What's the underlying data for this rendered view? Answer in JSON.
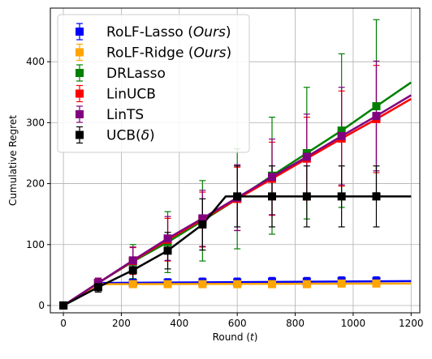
{
  "chart_data": {
    "type": "line",
    "title": "",
    "xlabel": "Round (t)",
    "ylabel": "Cumulative Regret",
    "xlim": [
      -45,
      1230
    ],
    "ylim": [
      -12,
      488
    ],
    "xticks": [
      0,
      200,
      400,
      600,
      800,
      1000,
      1200
    ],
    "yticks": [
      0,
      100,
      200,
      300,
      400
    ],
    "grid": true,
    "legend_position": "top-left",
    "series": [
      {
        "name": "RoLF-Lasso (Ours)",
        "color": "#0000ff",
        "line_x": [
          0,
          120,
          1200
        ],
        "line_y": [
          0,
          37,
          40
        ],
        "marker_x": [
          0,
          120,
          240,
          360,
          480,
          600,
          720,
          840,
          960,
          1080
        ],
        "marker_y": [
          0,
          37,
          37,
          37,
          38,
          38,
          39,
          39,
          40,
          40
        ],
        "err": [
          0,
          8,
          7,
          7,
          7,
          7,
          7,
          7,
          7,
          7
        ]
      },
      {
        "name": "RoLF-Ridge (Ours)",
        "color": "#ffa500",
        "line_x": [
          0,
          120,
          1200
        ],
        "line_y": [
          0,
          35,
          36
        ],
        "marker_x": [
          0,
          120,
          240,
          360,
          480,
          600,
          720,
          840,
          960,
          1080
        ],
        "marker_y": [
          0,
          35,
          35,
          35,
          35,
          35,
          35,
          35,
          36,
          36
        ],
        "err": [
          0,
          5,
          5,
          5,
          5,
          5,
          5,
          5,
          5,
          5
        ]
      },
      {
        "name": "DRLasso",
        "color": "#008000",
        "line_x": [
          0,
          120,
          240,
          360,
          480,
          600,
          720,
          840,
          960,
          1080,
          1200
        ],
        "line_y": [
          0,
          37,
          72,
          104,
          139,
          175,
          213,
          250,
          287,
          327,
          366
        ],
        "marker_x": [
          0,
          120,
          240,
          360,
          480,
          600,
          720,
          840,
          960,
          1080
        ],
        "marker_y": [
          0,
          37,
          72,
          104,
          139,
          175,
          213,
          250,
          287,
          327
        ],
        "err": [
          0,
          8,
          28,
          50,
          66,
          82,
          96,
          108,
          126,
          142
        ]
      },
      {
        "name": "LinUCB",
        "color": "#ff0000",
        "line_x": [
          0,
          120,
          240,
          360,
          480,
          600,
          720,
          840,
          960,
          1080,
          1200
        ],
        "line_y": [
          0,
          37,
          73,
          108,
          141,
          175,
          208,
          241,
          274,
          306,
          339
        ],
        "marker_x": [
          0,
          120,
          240,
          360,
          480,
          600,
          720,
          840,
          960,
          1080
        ],
        "marker_y": [
          0,
          37,
          73,
          108,
          141,
          175,
          208,
          241,
          274,
          306
        ],
        "err": [
          0,
          8,
          22,
          35,
          45,
          52,
          60,
          68,
          78,
          88
        ]
      },
      {
        "name": "LinTS",
        "color": "#800080",
        "line_x": [
          0,
          120,
          240,
          360,
          480,
          600,
          720,
          840,
          960,
          1080,
          1200
        ],
        "line_y": [
          0,
          37,
          74,
          110,
          143,
          177,
          211,
          244,
          278,
          311,
          345
        ],
        "marker_x": [
          0,
          120,
          240,
          360,
          480,
          600,
          720,
          840,
          960,
          1080
        ],
        "marker_y": [
          0,
          37,
          74,
          110,
          143,
          177,
          211,
          244,
          278,
          311
        ],
        "err": [
          0,
          8,
          22,
          36,
          46,
          54,
          62,
          70,
          80,
          90
        ]
      },
      {
        "name": "UCB(δ)",
        "color": "#000000",
        "line_x": [
          0,
          120,
          240,
          360,
          480,
          560,
          600,
          1200
        ],
        "line_y": [
          0,
          30,
          58,
          90,
          133,
          179,
          179,
          179
        ],
        "marker_x": [
          0,
          120,
          240,
          360,
          480,
          600,
          720,
          840,
          960,
          1080
        ],
        "marker_y": [
          0,
          30,
          58,
          90,
          133,
          179,
          179,
          179,
          179,
          179
        ],
        "err": [
          0,
          8,
          15,
          30,
          42,
          50,
          50,
          50,
          50,
          50
        ]
      }
    ]
  }
}
